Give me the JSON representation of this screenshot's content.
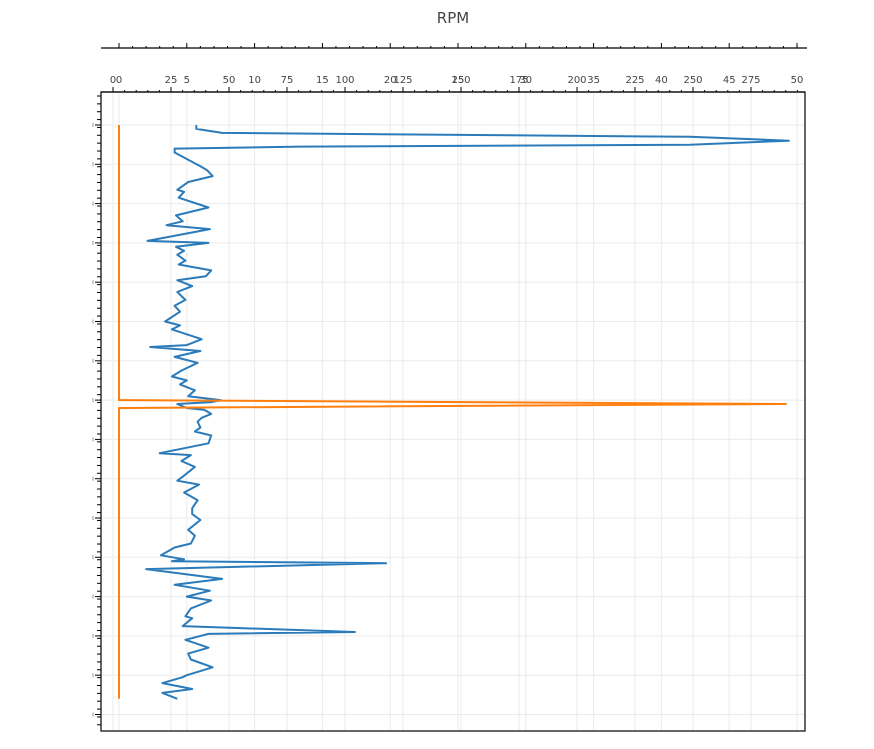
{
  "chart_data": {
    "type": "line",
    "title": "RPM",
    "xlabel": "",
    "ylabel": "",
    "orientation": "vertical-log (series plotted along y, value along x)",
    "grid": true,
    "legend": null,
    "axes": {
      "x_top": {
        "ticks": [
          0,
          5,
          10,
          15,
          20,
          25,
          30,
          35,
          40,
          45,
          50
        ],
        "tick_labels": [
          "0",
          "5",
          "10",
          "15",
          "20",
          "25",
          "30",
          "35",
          "40",
          "45",
          "50"
        ],
        "range": [
          0,
          50
        ]
      },
      "x_top2": {
        "ticks": [
          0,
          25,
          50,
          75,
          100,
          125,
          150,
          175,
          200,
          225,
          250,
          275
        ],
        "tick_labels": [
          "0",
          "25",
          "50",
          "75",
          "100",
          "125",
          "150",
          "175",
          "200",
          "225",
          "250",
          "275"
        ],
        "range": [
          0,
          296
        ]
      },
      "y_left": {
        "tick_labels_visible": false,
        "range": [
          0,
          15.5
        ],
        "note": "y tick labels are rendered as tiny unreadable marks"
      }
    },
    "series": [
      {
        "name": "RPM",
        "color": "#2b7bba",
        "axis": "x_top",
        "points": [
          [
            5.7,
            0.0
          ],
          [
            5.7,
            0.1
          ],
          [
            7.6,
            0.2
          ],
          [
            42.1,
            0.3
          ],
          [
            49.4,
            0.4
          ],
          [
            42.1,
            0.5
          ],
          [
            13.4,
            0.55
          ],
          [
            4.1,
            0.6
          ],
          [
            4.1,
            0.7
          ],
          [
            6.0,
            1.05
          ],
          [
            6.5,
            1.15
          ],
          [
            6.9,
            1.3
          ],
          [
            5.1,
            1.45
          ],
          [
            4.3,
            1.65
          ],
          [
            4.8,
            1.7
          ],
          [
            4.4,
            1.85
          ],
          [
            6.6,
            2.1
          ],
          [
            4.2,
            2.3
          ],
          [
            4.7,
            2.45
          ],
          [
            3.5,
            2.55
          ],
          [
            6.7,
            2.65
          ],
          [
            2.1,
            2.95
          ],
          [
            6.6,
            3.0
          ],
          [
            4.2,
            3.1
          ],
          [
            4.8,
            3.2
          ],
          [
            4.3,
            3.3
          ],
          [
            4.9,
            3.45
          ],
          [
            4.4,
            3.55
          ],
          [
            6.8,
            3.7
          ],
          [
            6.4,
            3.85
          ],
          [
            4.3,
            3.95
          ],
          [
            5.4,
            4.1
          ],
          [
            4.3,
            4.25
          ],
          [
            4.9,
            4.45
          ],
          [
            4.1,
            4.6
          ],
          [
            4.5,
            4.75
          ],
          [
            3.4,
            5.0
          ],
          [
            4.5,
            5.1
          ],
          [
            3.9,
            5.2
          ],
          [
            6.1,
            5.45
          ],
          [
            5.0,
            5.6
          ],
          [
            2.3,
            5.65
          ],
          [
            6.0,
            5.75
          ],
          [
            4.1,
            5.9
          ],
          [
            5.8,
            6.05
          ],
          [
            4.6,
            6.25
          ],
          [
            3.9,
            6.4
          ],
          [
            5.0,
            6.5
          ],
          [
            4.5,
            6.6
          ],
          [
            5.6,
            6.75
          ],
          [
            5.1,
            6.9
          ],
          [
            7.5,
            7.0
          ],
          [
            6.8,
            7.05
          ],
          [
            4.3,
            7.1
          ],
          [
            5.0,
            7.2
          ],
          [
            6.3,
            7.25
          ],
          [
            6.8,
            7.35
          ],
          [
            6.1,
            7.45
          ],
          [
            5.8,
            7.55
          ],
          [
            6.0,
            7.7
          ],
          [
            5.6,
            7.8
          ],
          [
            6.8,
            7.9
          ],
          [
            6.6,
            8.1
          ],
          [
            3.0,
            8.35
          ],
          [
            5.3,
            8.4
          ],
          [
            4.6,
            8.55
          ],
          [
            5.6,
            8.7
          ],
          [
            4.7,
            8.95
          ],
          [
            4.3,
            9.05
          ],
          [
            5.9,
            9.15
          ],
          [
            4.8,
            9.35
          ],
          [
            5.8,
            9.55
          ],
          [
            5.4,
            9.75
          ],
          [
            5.4,
            9.9
          ],
          [
            6.0,
            10.05
          ],
          [
            5.1,
            10.3
          ],
          [
            5.6,
            10.45
          ],
          [
            5.3,
            10.65
          ],
          [
            4.1,
            10.75
          ],
          [
            3.1,
            10.95
          ],
          [
            4.8,
            11.05
          ],
          [
            3.9,
            11.1
          ],
          [
            19.7,
            11.15
          ],
          [
            2.0,
            11.3
          ],
          [
            7.6,
            11.55
          ],
          [
            4.1,
            11.7
          ],
          [
            6.7,
            11.85
          ],
          [
            5.0,
            12.0
          ],
          [
            6.8,
            12.1
          ],
          [
            5.3,
            12.3
          ],
          [
            5.0,
            12.45
          ],
          [
            4.9,
            12.5
          ],
          [
            5.4,
            12.55
          ],
          [
            4.7,
            12.75
          ],
          [
            17.4,
            12.9
          ],
          [
            6.6,
            12.95
          ],
          [
            4.9,
            13.1
          ],
          [
            6.6,
            13.3
          ],
          [
            5.1,
            13.45
          ],
          [
            5.3,
            13.6
          ],
          [
            6.9,
            13.8
          ],
          [
            5.0,
            14.0
          ],
          [
            4.7,
            14.05
          ],
          [
            3.2,
            14.2
          ],
          [
            5.4,
            14.35
          ],
          [
            3.2,
            14.45
          ],
          [
            4.3,
            14.6
          ]
        ]
      },
      {
        "name": "orange-series",
        "color": "#ff7f0e",
        "axis": "x_top2",
        "points": [
          [
            2.6,
            0.0
          ],
          [
            2.6,
            7.0
          ],
          [
            290,
            7.1
          ],
          [
            2.6,
            7.2
          ],
          [
            2.6,
            14.6
          ]
        ]
      }
    ]
  },
  "ui": {
    "title": "RPM",
    "x_top_labels": [
      "0",
      "5",
      "10",
      "15",
      "20",
      "25",
      "30",
      "35",
      "40",
      "45",
      "50"
    ],
    "x_second_labels": [
      "0",
      "25",
      "50",
      "75",
      "100",
      "125",
      "150",
      "175",
      "200",
      "225",
      "250",
      "275"
    ]
  }
}
